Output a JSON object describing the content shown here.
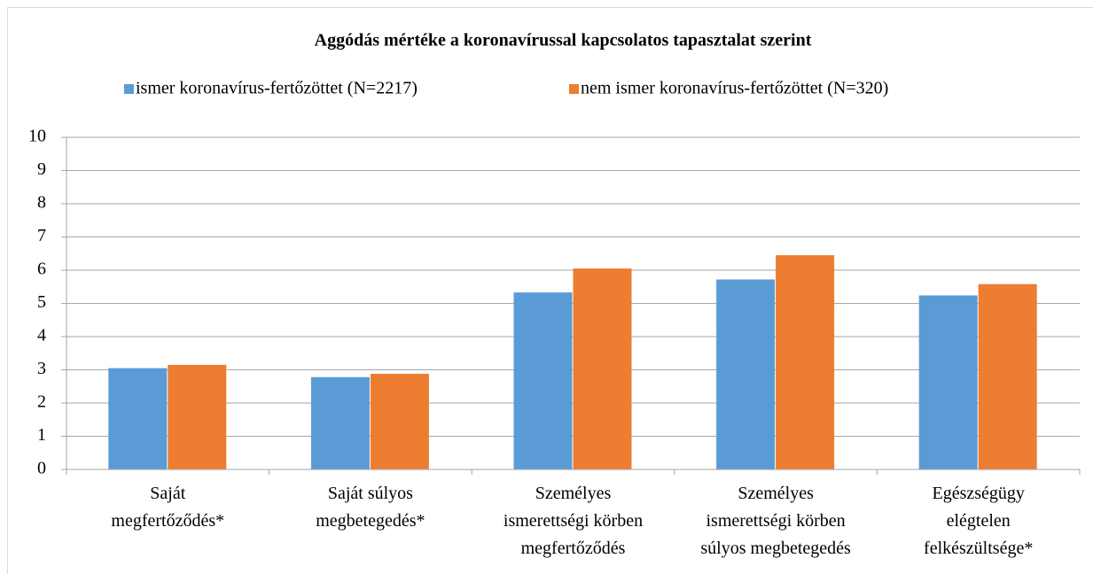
{
  "chart_data": {
    "type": "bar",
    "title": "Aggódás mértéke a koronavírussal  kapcsolatos tapasztalat szerint",
    "categories": [
      "Saját\nmegfertőződés*",
      "Saját súlyos\nmegbetegedés*",
      "Személyes\nismerettségi körben\nmegfertőződés",
      "Személyes\nismerettségi körben\nsúlyos megbetegedés",
      "Egészségügy\nelégtelen\nfelkészültsége*"
    ],
    "series": [
      {
        "name": "ismer koronavírus-fertőzöttet (N=2217)",
        "color": "#5b9bd5",
        "values": [
          3.05,
          2.78,
          5.33,
          5.72,
          5.24
        ]
      },
      {
        "name": "nem ismer koronavírus-fertőzöttet (N=320)",
        "color": "#ed7d31",
        "values": [
          3.15,
          2.88,
          6.05,
          6.45,
          5.58
        ]
      }
    ],
    "ylim": [
      0,
      10
    ],
    "yticks": [
      0,
      1,
      2,
      3,
      4,
      5,
      6,
      7,
      8,
      9,
      10
    ],
    "grid": true,
    "legend": "top"
  }
}
